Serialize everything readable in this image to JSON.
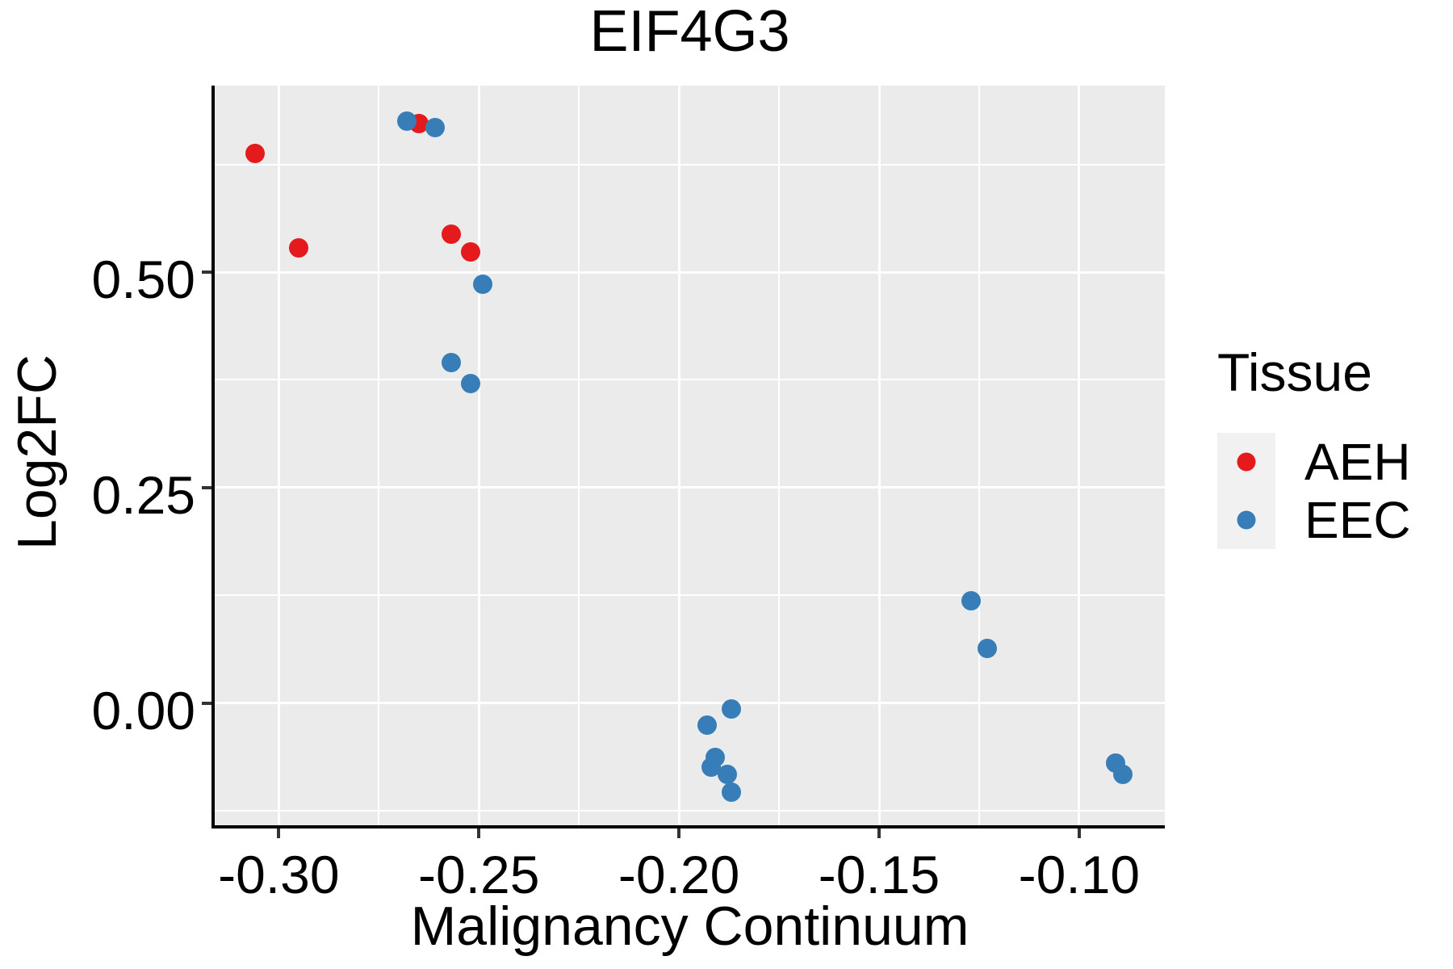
{
  "title": "EIF4G3",
  "x_axis_label": "Malignancy Continuum",
  "y_axis_label": "Log2FC",
  "legend": {
    "title": "Tissue",
    "items": [
      {
        "label": "AEH",
        "color": "#E41A1C"
      },
      {
        "label": "EEC",
        "color": "#377EB8"
      }
    ]
  },
  "colors": {
    "background": "#FFFFFF",
    "panel_background": "#EBEBEB",
    "gridline": "#FFFFFF",
    "axis_line": "#000000",
    "tick_mark": "#333333",
    "text": "#000000",
    "legend_key_background": "#F1F1F1",
    "aeh_point": "#E41A1C",
    "eec_point": "#377EB8"
  },
  "chart_data": {
    "type": "scatter",
    "title": "EIF4G3",
    "xlabel": "Malignancy Continuum",
    "ylabel": "Log2FC",
    "xlim": [
      -0.316,
      -0.0786
    ],
    "ylim": [
      -0.1414,
      0.7163
    ],
    "x_ticks": [
      -0.3,
      -0.25,
      -0.2,
      -0.15,
      -0.1
    ],
    "x_tick_labels": [
      "-0.30",
      "-0.25",
      "-0.20",
      "-0.15",
      "-0.10"
    ],
    "x_minor_ticks": [
      -0.275,
      -0.225,
      -0.175,
      -0.125
    ],
    "y_ticks": [
      0.5,
      0.25,
      0.0
    ],
    "y_tick_labels": [
      "0.50",
      "0.25",
      "0.00"
    ],
    "y_minor_ticks": [
      0.625,
      0.375,
      0.125,
      -0.125
    ],
    "grid": true,
    "legend_position": "right",
    "legend_title": "Tissue",
    "point_radius": 12,
    "series": [
      {
        "name": "AEH",
        "color": "#E41A1C",
        "points": [
          [
            -0.306,
            0.638
          ],
          [
            -0.295,
            0.528
          ],
          [
            -0.265,
            0.672
          ],
          [
            -0.257,
            0.544
          ],
          [
            -0.252,
            0.523
          ]
        ]
      },
      {
        "name": "EEC",
        "color": "#377EB8",
        "points": [
          [
            -0.268,
            0.675
          ],
          [
            -0.261,
            0.668
          ],
          [
            -0.249,
            0.486
          ],
          [
            -0.257,
            0.395
          ],
          [
            -0.252,
            0.371
          ],
          [
            -0.187,
            -0.007
          ],
          [
            -0.193,
            -0.025
          ],
          [
            -0.191,
            -0.063
          ],
          [
            -0.192,
            -0.074
          ],
          [
            -0.188,
            -0.082
          ],
          [
            -0.187,
            -0.103
          ],
          [
            -0.127,
            0.119
          ],
          [
            -0.123,
            0.064
          ],
          [
            -0.091,
            -0.069
          ],
          [
            -0.089,
            -0.082
          ]
        ]
      }
    ]
  }
}
